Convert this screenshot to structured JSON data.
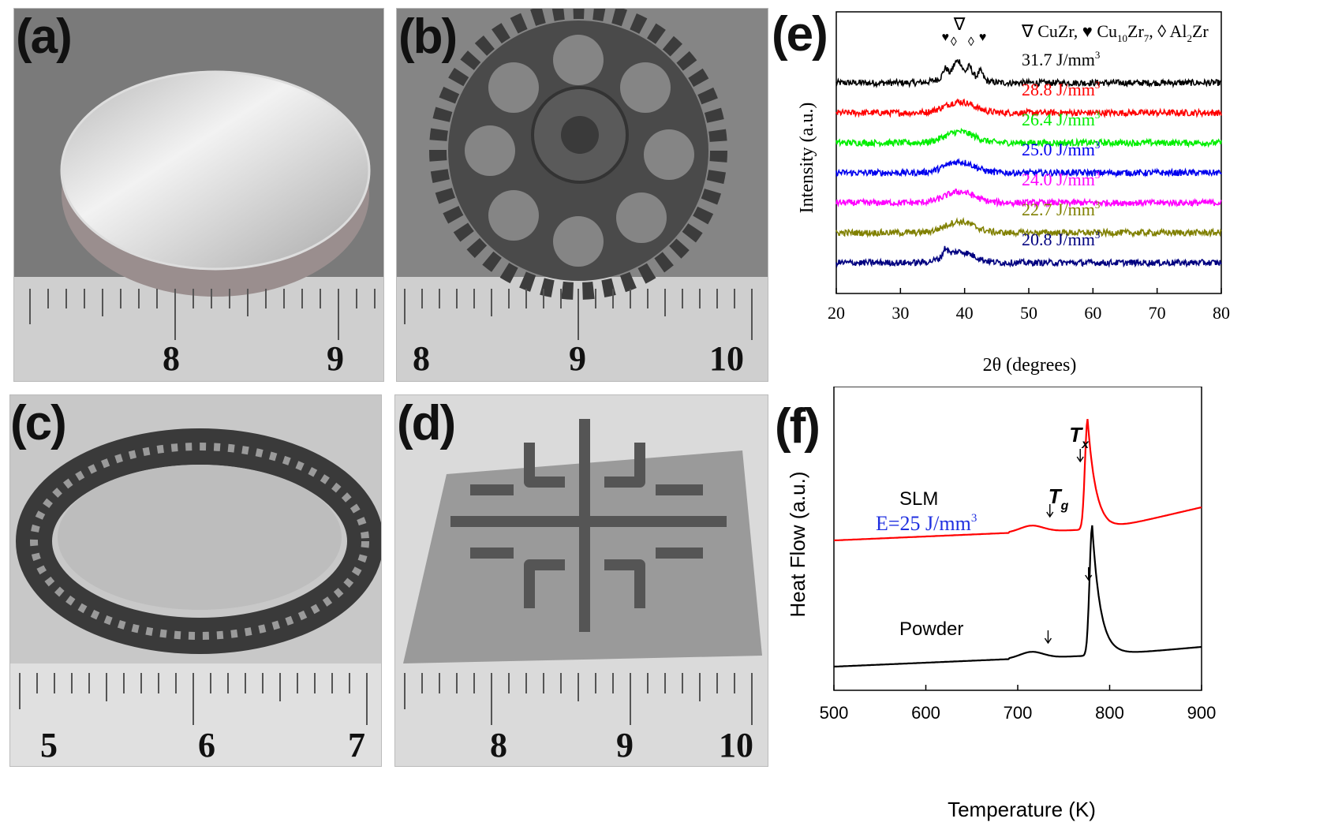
{
  "panels": {
    "a": {
      "label": "(a)",
      "ruler": [
        "8",
        "9"
      ]
    },
    "b": {
      "label": "(b)",
      "ruler": [
        "8",
        "9",
        "10"
      ]
    },
    "c": {
      "label": "(c)",
      "ruler": [
        "5",
        "6",
        "7"
      ]
    },
    "d": {
      "label": "(d)",
      "ruler": [
        "8",
        "9",
        "10"
      ]
    },
    "e": {
      "label": "(e)"
    },
    "f": {
      "label": "(f)"
    }
  },
  "chart_data": [
    {
      "panel": "e",
      "type": "line",
      "xlabel": "2θ (degrees)",
      "ylabel": "Intensity (a.u.)",
      "xlim": [
        20,
        80
      ],
      "xticks": [
        "20",
        "30",
        "40",
        "50",
        "60",
        "70",
        "80"
      ],
      "legend_parts": [
        "∇ CuZr, ",
        "♥ Cu",
        "10",
        "Zr",
        "7",
        ", ◊ Al",
        "2",
        "Zr"
      ],
      "series": [
        {
          "name": "31.7 J/mm",
          "sup": "3",
          "color": "#000000",
          "peaks": [
            37,
            38.5,
            39.2,
            40.8,
            42.5
          ]
        },
        {
          "name": "28.8 J/mm",
          "sup": "3",
          "color": "#ff0000",
          "peaks": [
            39.2
          ]
        },
        {
          "name": "26.4 J/mm",
          "sup": "3",
          "color": "#00ee00",
          "peaks": [
            39.2
          ]
        },
        {
          "name": "25.0 J/mm",
          "sup": "3",
          "color": "#0000ee",
          "peaks": [
            39.2
          ]
        },
        {
          "name": "24.0 J/mm",
          "sup": "3",
          "color": "#ff00ff",
          "peaks": [
            39.2
          ]
        },
        {
          "name": "22.7 J/mm",
          "sup": "3",
          "color": "#808000",
          "peaks": [
            39.2
          ]
        },
        {
          "name": "20.8 J/mm",
          "sup": "3",
          "color": "#000080",
          "peaks": [
            37,
            39.2
          ]
        }
      ],
      "markers": [
        "♥",
        "◊",
        "∇",
        "◊",
        "♥"
      ]
    },
    {
      "panel": "f",
      "type": "line",
      "xlabel": "Temperature (K)",
      "ylabel": "Heat Flow (a.u.)",
      "xlim": [
        500,
        900
      ],
      "xticks": [
        "500",
        "600",
        "700",
        "800",
        "900"
      ],
      "series": [
        {
          "name": "SLM",
          "sub": "E=25 J/mm",
          "sup": "3",
          "color": "#ff0000",
          "Tg": 735,
          "Tx": 768,
          "peak": 776
        },
        {
          "name": "Powder",
          "color": "#000000",
          "Tg": 733,
          "Tx": 777,
          "peak": 781
        }
      ],
      "annotations": {
        "tg": "T",
        "tg_sub": "g",
        "tx": "T",
        "tx_sub": "x"
      }
    }
  ]
}
